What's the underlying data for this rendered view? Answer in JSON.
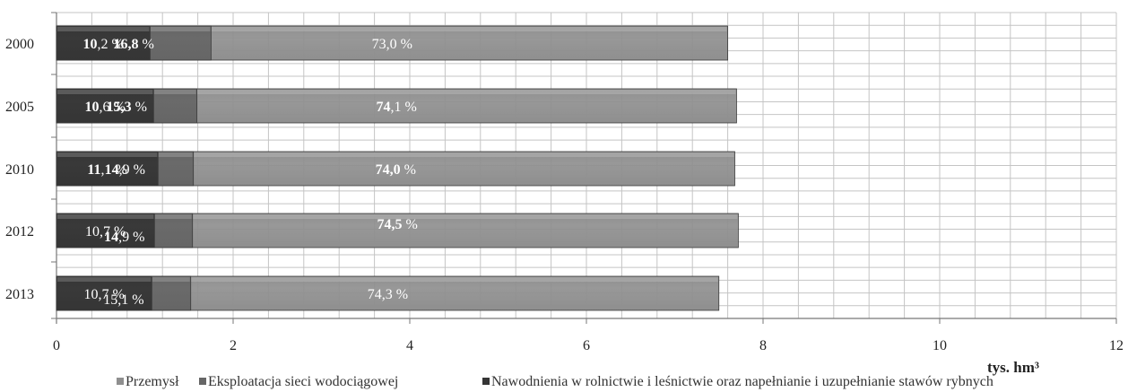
{
  "chart_data": {
    "type": "bar",
    "orientation": "horizontal",
    "stacked": true,
    "title": "",
    "xlabel": "tys. hm³",
    "ylabel": "",
    "xlim": [
      0,
      12
    ],
    "x_ticks": [
      "0",
      "2",
      "4",
      "6",
      "8",
      "10",
      "12"
    ],
    "grid": true,
    "legend_position": "bottom",
    "categories": [
      "2000",
      "2005",
      "2010",
      "2012",
      "2013"
    ],
    "series": [
      {
        "name": "Przemysł",
        "color": "#8f8f8f",
        "values": [
          7.6,
          7.7,
          7.68,
          7.72,
          7.5
        ],
        "labels": [
          {
            "int": "73",
            "dec": ",0 %",
            "bold": false
          },
          {
            "int": "74",
            "dec": ",1 %",
            "bold": true
          },
          {
            "int": "74,0",
            "dec": " %",
            "bold": true
          },
          {
            "int": "74,5",
            "dec": " %",
            "bold": true
          },
          {
            "int": "74",
            "dec": ",3 %",
            "bold": false
          }
        ]
      },
      {
        "name": "Eksploatacja sieci wodociągowej",
        "color": "#666666",
        "values": [
          1.75,
          1.59,
          1.55,
          1.54,
          1.52
        ],
        "labels": [
          {
            "int": "16,8",
            "dec": " %",
            "bold": true
          },
          {
            "int": "15,3",
            "dec": " %",
            "bold": true
          },
          {
            "int": "14",
            "dec": ",9 %",
            "bold": true
          },
          {
            "int": "14",
            "dec": ",9 %",
            "bold": true
          },
          {
            "int": "15",
            "dec": ",1 %",
            "bold": false
          }
        ]
      },
      {
        "name": "Nawodnienia w rolnictwie i leśnictwie oraz napełnianie i uzupełnianie stawów rybnych",
        "color": "#353535",
        "values": [
          1.06,
          1.1,
          1.15,
          1.11,
          1.08
        ],
        "labels": [
          {
            "int": "10",
            "dec": ",2 %",
            "bold": true
          },
          {
            "int": "10",
            "dec": ",6 %",
            "bold": true
          },
          {
            "int": "11",
            "dec": ",1 %",
            "bold": true
          },
          {
            "int": "10",
            "dec": ",7 %",
            "bold": false
          },
          {
            "int": "10",
            "dec": ",7 %",
            "bold": false
          }
        ]
      }
    ]
  }
}
